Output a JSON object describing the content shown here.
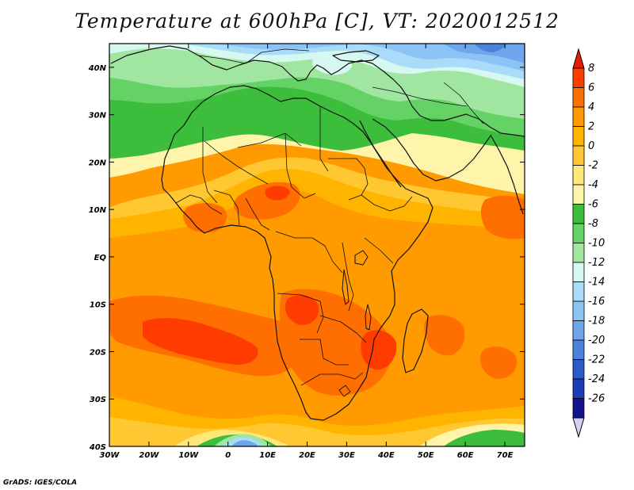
{
  "title": "Temperature at 600hPa [C], VT: 2020012512",
  "credit": "GrADS: IGES/COLA",
  "map": {
    "lon_range": [
      -30,
      75
    ],
    "lat_range": [
      -40,
      45
    ],
    "lon_ticks": [
      {
        "value": -30,
        "label": "30W"
      },
      {
        "value": -20,
        "label": "20W"
      },
      {
        "value": -10,
        "label": "10W"
      },
      {
        "value": 0,
        "label": "0"
      },
      {
        "value": 10,
        "label": "10E"
      },
      {
        "value": 20,
        "label": "20E"
      },
      {
        "value": 30,
        "label": "30E"
      },
      {
        "value": 40,
        "label": "40E"
      },
      {
        "value": 50,
        "label": "50E"
      },
      {
        "value": 60,
        "label": "60E"
      },
      {
        "value": 70,
        "label": "70E"
      }
    ],
    "lat_ticks": [
      {
        "value": 40,
        "label": "40N"
      },
      {
        "value": 30,
        "label": "30N"
      },
      {
        "value": 20,
        "label": "20N"
      },
      {
        "value": 10,
        "label": "10N"
      },
      {
        "value": 0,
        "label": "EQ"
      },
      {
        "value": -10,
        "label": "10S"
      },
      {
        "value": -20,
        "label": "20S"
      },
      {
        "value": -30,
        "label": "30S"
      },
      {
        "value": -40,
        "label": "40S"
      }
    ]
  },
  "colorbar": {
    "labels": [
      "8",
      "6",
      "4",
      "2",
      "0",
      "-2",
      "-4",
      "-6",
      "-8",
      "-10",
      "-12",
      "-14",
      "-16",
      "-18",
      "-20",
      "-22",
      "-24",
      "-26"
    ],
    "colors": [
      "#ff3c00",
      "#ff6e00",
      "#ff9a00",
      "#ffb400",
      "#ffc832",
      "#ffe87a",
      "#fff5aa",
      "#3cbe3c",
      "#64d264",
      "#a0e6a0",
      "#d7f8f0",
      "#aadcfa",
      "#8cc3f5",
      "#6ea5eb",
      "#4b82dc",
      "#2d5ac8",
      "#1e3cb4",
      "#14148c"
    ],
    "top_triangle_color": "#e61e00",
    "bottom_triangle_color": "#d2d2f0"
  },
  "field_colors": {
    "t_pos7": "#ff3c00",
    "t_pos5": "#ff6e00",
    "t_pos3": "#ff9a00",
    "t_pos1": "#ffb400",
    "t_neg1": "#ffc832",
    "t_neg3": "#ffe87a",
    "t_neg5": "#fff5aa",
    "t_neg7": "#3cbe3c",
    "t_neg9": "#64d264",
    "t_neg11": "#a0e6a0",
    "t_neg13": "#d7f8f0",
    "t_neg15": "#aadcfa",
    "t_neg17": "#8cc3f5",
    "t_neg19": "#6ea5eb",
    "t_neg21": "#4b82dc",
    "t_neg23": "#2d5ac8"
  }
}
